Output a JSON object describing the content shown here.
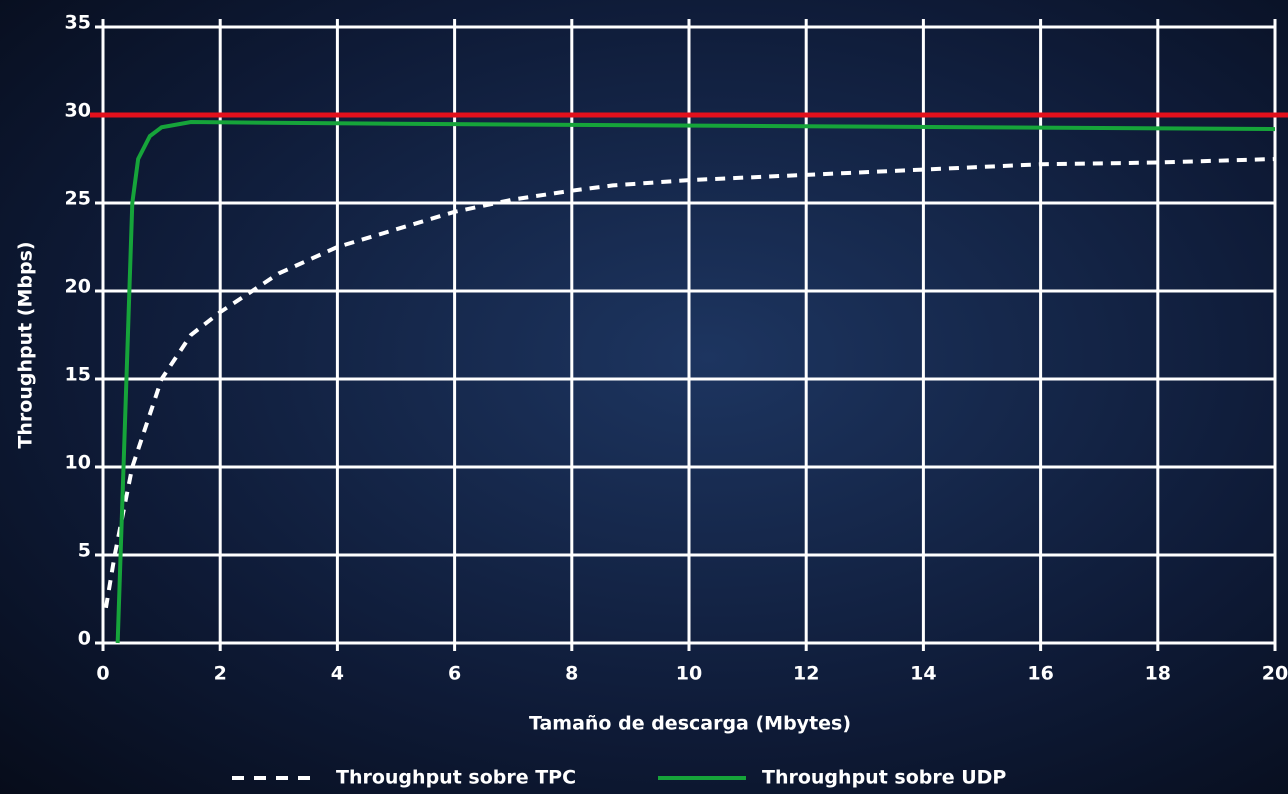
{
  "chart_data": {
    "type": "line",
    "x_label": "Tamaño de descarga (Mbytes)",
    "y_label": "Throughput (Mbps)",
    "xlim": [
      0,
      20
    ],
    "xticks": [
      0,
      2,
      4,
      6,
      8,
      10,
      12,
      14,
      16,
      18,
      20
    ],
    "ylim": [
      0,
      35
    ],
    "yticks": [
      0,
      5,
      10,
      15,
      20,
      25,
      30,
      35
    ],
    "grid": true,
    "legend": "bottom",
    "reference_line": {
      "value": 30,
      "color": "#e3101c"
    },
    "series": [
      {
        "name": "Throughput sobre TPC",
        "color": "#ffffff",
        "dashed": true,
        "x": [
          0.05,
          0.2,
          0.5,
          1,
          1.5,
          2,
          3,
          4,
          5,
          6,
          7,
          8,
          8.7,
          10,
          12,
          14,
          16,
          18,
          20
        ],
        "values": [
          2,
          5,
          10,
          15,
          17.5,
          18.8,
          21,
          22.5,
          23.5,
          24.5,
          25.2,
          25.7,
          26,
          26.3,
          26.6,
          26.9,
          27.2,
          27.3,
          27.5
        ]
      },
      {
        "name": "Throughput sobre UDP",
        "color": "#16a43a",
        "dashed": false,
        "x": [
          0.25,
          0.3,
          0.4,
          0.5,
          0.6,
          0.8,
          1,
          1.5,
          5,
          20
        ],
        "values": [
          0,
          5,
          15,
          25,
          27.5,
          28.8,
          29.3,
          29.6,
          29.5,
          29.2
        ]
      }
    ]
  }
}
